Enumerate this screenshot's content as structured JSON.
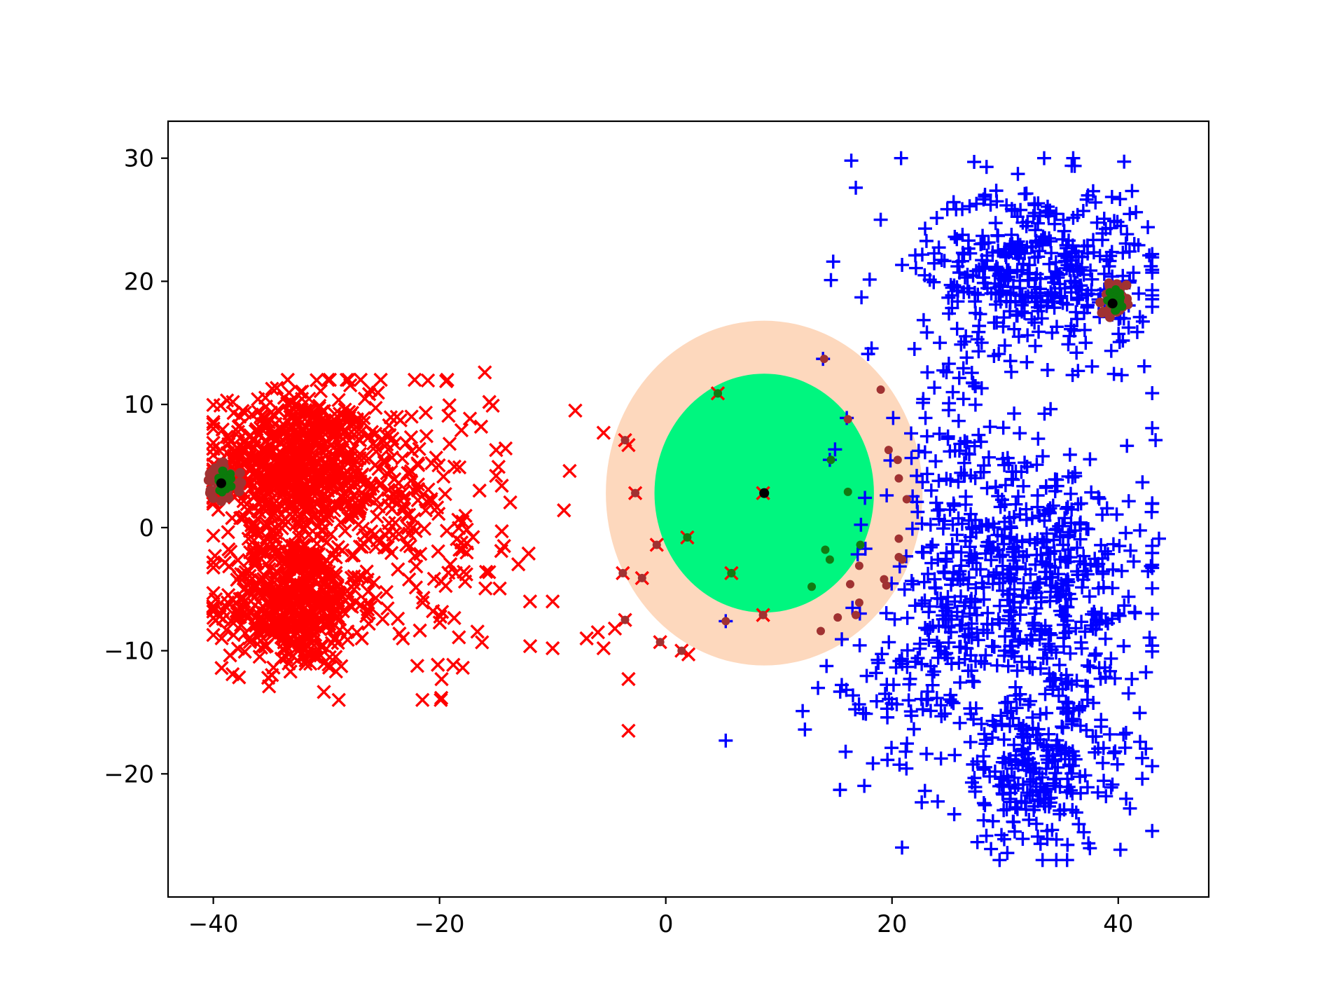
{
  "chart_data": {
    "type": "scatter",
    "title": "",
    "xlabel": "",
    "ylabel": "",
    "xlim": [
      -44,
      48
    ],
    "ylim": [
      -30,
      33
    ],
    "grid": false,
    "legend": "none",
    "x_ticks": [
      {
        "value": -40,
        "label": "−40"
      },
      {
        "value": -20,
        "label": "−20"
      },
      {
        "value": 0,
        "label": "0"
      },
      {
        "value": 20,
        "label": "20"
      },
      {
        "value": 40,
        "label": "40"
      }
    ],
    "y_ticks": [
      {
        "value": 30,
        "label": "30"
      },
      {
        "value": 20,
        "label": "20"
      },
      {
        "value": 10,
        "label": "10"
      },
      {
        "value": 0,
        "label": "0"
      },
      {
        "value": -10,
        "label": "−10"
      },
      {
        "value": -20,
        "label": "−20"
      }
    ],
    "regions": [
      {
        "kind": "outer-ellipse",
        "cx": 8.7,
        "cy": 2.8,
        "rx": 14,
        "ry": 14,
        "color": "#fdd8bd"
      },
      {
        "kind": "inner-ellipse",
        "cx": 8.7,
        "cy": 2.8,
        "rx": 9.7,
        "ry": 9.7,
        "color": "#00f67f"
      }
    ],
    "series": [
      {
        "marker": "x",
        "color": "#ff0000",
        "clusters": [
          {
            "cx": -33,
            "cy": 5,
            "sx": 3.5,
            "sy": 3,
            "n": 650
          },
          {
            "cx": -33,
            "cy": -6,
            "sx": 3,
            "sy": 2.8,
            "n": 520
          },
          {
            "cx": -26,
            "cy": 3,
            "sx": 3.5,
            "sy": 4.5,
            "n": 170
          },
          {
            "cx": -20,
            "cy": -2,
            "sx": 3.5,
            "sy": 6,
            "n": 90
          }
        ],
        "extra_points": [
          [
            -16,
            12.6
          ],
          [
            -15.6,
            10.2
          ],
          [
            -15.3,
            9.9
          ],
          [
            -15,
            6.3
          ],
          [
            -15,
            4.2
          ],
          [
            -14.5,
            3.4
          ],
          [
            -14.5,
            -0.3
          ],
          [
            -14.3,
            -1.5
          ],
          [
            -12,
            -6
          ],
          [
            -10,
            -6
          ],
          [
            -8,
            9.5
          ],
          [
            -9,
            1.4
          ],
          [
            -8.5,
            4.6
          ],
          [
            -10,
            -9.8
          ],
          [
            -7,
            -9
          ],
          [
            -5.5,
            -9.8
          ],
          [
            -5.5,
            7.7
          ],
          [
            -3.6,
            7.1
          ],
          [
            -3.3,
            6.7
          ],
          [
            -2.7,
            2.8
          ],
          [
            -0.8,
            -1.4
          ],
          [
            -2.1,
            -4.1
          ],
          [
            -3.8,
            -3.7
          ],
          [
            -3.6,
            -7.5
          ],
          [
            -3.3,
            -12.3
          ],
          [
            -3.3,
            -16.5
          ],
          [
            -0.5,
            -9.3
          ],
          [
            1.4,
            -10
          ],
          [
            2,
            -10.3
          ],
          [
            1.9,
            -0.8
          ],
          [
            4.6,
            10.9
          ],
          [
            5.8,
            -3.7
          ],
          [
            8.6,
            -7.1
          ],
          [
            8.6,
            2.8
          ],
          [
            -4.5,
            -8.2
          ],
          [
            -6,
            -8.5
          ]
        ]
      },
      {
        "marker": "+",
        "color": "#0000ff",
        "clusters": [
          {
            "cx": 33,
            "cy": 21,
            "sx": 5,
            "sy": 3.5,
            "n": 420
          },
          {
            "cx": 33,
            "cy": -5,
            "sx": 5,
            "sy": 6,
            "n": 480
          },
          {
            "cx": 33,
            "cy": -20,
            "sx": 4,
            "sy": 3.5,
            "n": 240
          },
          {
            "cx": 26,
            "cy": 0,
            "sx": 4,
            "sy": 8,
            "n": 200
          },
          {
            "cx": 20,
            "cy": -13,
            "sx": 3,
            "sy": 3,
            "n": 60
          }
        ],
        "extra_points": [
          [
            16.4,
            29.8
          ],
          [
            16.8,
            27.6
          ],
          [
            20.8,
            30
          ],
          [
            19,
            25
          ],
          [
            14.8,
            21.6
          ],
          [
            14.6,
            20.1
          ],
          [
            17.3,
            18.7
          ],
          [
            5.3,
            -17.3
          ],
          [
            15.9,
            -18.2
          ],
          [
            15.4,
            -21.3
          ],
          [
            12.1,
            -14.9
          ],
          [
            12.3,
            -16.4
          ],
          [
            43.6,
            -0.9
          ],
          [
            43.3,
            7.1
          ],
          [
            42.3,
            13.1
          ],
          [
            13.9,
            13.7
          ],
          [
            20.1,
            8.9
          ],
          [
            14.5,
            5.5
          ],
          [
            16,
            8.9
          ],
          [
            5.3,
            -7.6
          ]
        ]
      }
    ],
    "highlight_points": {
      "marker": "o",
      "color": "#a03232",
      "points": [
        [
          -3.6,
          7.1
        ],
        [
          -2.7,
          2.8
        ],
        [
          -0.8,
          -1.4
        ],
        [
          -2.1,
          -4.1
        ],
        [
          -3.8,
          -3.7
        ],
        [
          -3.6,
          -7.5
        ],
        [
          -0.5,
          -9.3
        ],
        [
          1.4,
          -10
        ],
        [
          4.6,
          10.9
        ],
        [
          5.8,
          -3.7
        ],
        [
          8.6,
          -7.1
        ],
        [
          14,
          13.7
        ],
        [
          19,
          11.2
        ],
        [
          16.1,
          8.8
        ],
        [
          19.7,
          6.3
        ],
        [
          20.5,
          5.5
        ],
        [
          20.6,
          4
        ],
        [
          21.3,
          2.3
        ],
        [
          20.6,
          -0.9
        ],
        [
          20.6,
          -2.4
        ],
        [
          20.9,
          -2.6
        ],
        [
          17.1,
          -3.1
        ],
        [
          16.3,
          -4.6
        ],
        [
          19.5,
          -4.7
        ],
        [
          17.1,
          -6.1
        ],
        [
          15.2,
          -7.3
        ],
        [
          16.8,
          -7.1
        ],
        [
          13.7,
          -8.4
        ],
        [
          5.3,
          -7.6
        ],
        [
          19.3,
          -4.2
        ]
      ]
    },
    "inlier_points": {
      "marker": "o",
      "color": "#127a12",
      "points": [
        [
          4.6,
          10.9
        ],
        [
          14.6,
          5.5
        ],
        [
          16.1,
          2.9
        ],
        [
          14.1,
          -1.8
        ],
        [
          14.5,
          -2.6
        ],
        [
          17.2,
          -1.4
        ],
        [
          12.9,
          -4.8
        ],
        [
          5.8,
          -3.7
        ],
        [
          1.9,
          -0.8
        ]
      ]
    },
    "corner_clusters": [
      {
        "cx": -39,
        "cy": 3.7,
        "inner": "#0b7a0b",
        "outer": "#a03232"
      },
      {
        "cx": 39.7,
        "cy": 18.4,
        "inner": "#0b7a0b",
        "outer": "#a03232"
      }
    ],
    "centroids": [
      {
        "x": -39.3,
        "y": 3.6
      },
      {
        "x": 8.7,
        "y": 2.8
      },
      {
        "x": 39.5,
        "y": 18.2
      }
    ]
  }
}
